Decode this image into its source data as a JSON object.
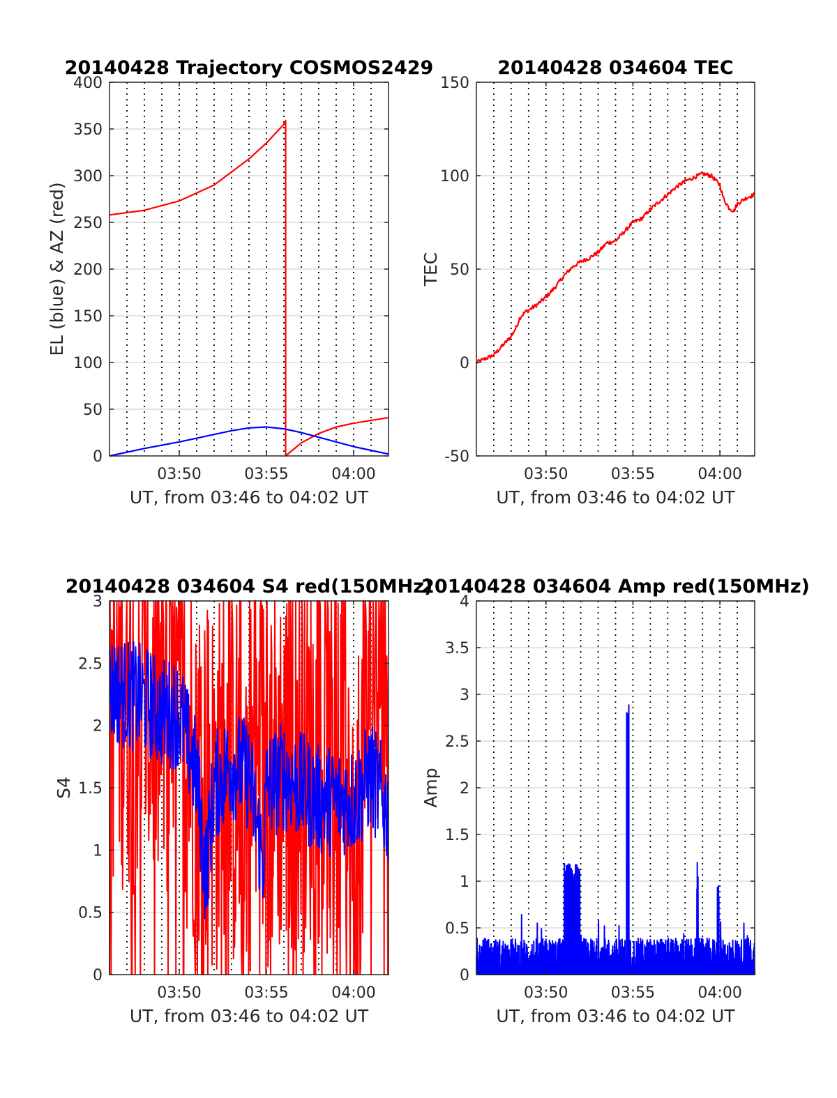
{
  "colors": {
    "red": "#ff0000",
    "blue": "#0000ff",
    "axis": "#262626",
    "grid": "#dcdcdc"
  },
  "chart_data": [
    {
      "type": "line",
      "title": "20140428 Trajectory COSMOS2429",
      "xlabel": "UT, from 03:46 to 04:02 UT",
      "ylabel": "EL (blue) & AZ (red)",
      "x_unit": "minutes after 03:46 UT",
      "xlim": [
        0,
        16
      ],
      "ylim": [
        0,
        400
      ],
      "yticks": [
        0,
        50,
        100,
        150,
        200,
        250,
        300,
        350,
        400
      ],
      "ytick_labels": [
        "0",
        "50",
        "100",
        "150",
        "200",
        "250",
        "300",
        "350",
        "400"
      ],
      "xticks": [
        4,
        9,
        14
      ],
      "xtick_labels": [
        "03:50",
        "03:55",
        "04:00"
      ],
      "series": [
        {
          "color": "red",
          "x": [
            0,
            2,
            4,
            6,
            8,
            9,
            10,
            10.1,
            10.1,
            11,
            12,
            13,
            14,
            15,
            16
          ],
          "y": [
            258,
            263,
            273,
            290,
            318,
            335,
            355,
            359,
            0,
            14,
            24,
            31,
            35,
            38,
            41
          ]
        },
        {
          "color": "blue",
          "x": [
            0,
            2,
            4,
            6,
            7,
            8,
            9,
            10,
            11,
            12,
            13,
            14,
            15,
            16
          ],
          "y": [
            0,
            8,
            15,
            23,
            27,
            30,
            31,
            29,
            25,
            20,
            15,
            10,
            6,
            2
          ]
        }
      ]
    },
    {
      "type": "line",
      "title": "20140428 034604 TEC",
      "xlabel": "UT, from 03:46 to 04:02 UT",
      "ylabel": "TEC",
      "x_unit": "minutes after 03:46 UT",
      "xlim": [
        0,
        16
      ],
      "ylim": [
        -50,
        150
      ],
      "yticks": [
        -50,
        0,
        50,
        100,
        150
      ],
      "ytick_labels": [
        "-50",
        "0",
        "50",
        "100",
        "150"
      ],
      "xticks": [
        4,
        9,
        14
      ],
      "xtick_labels": [
        "03:50",
        "03:55",
        "04:00"
      ],
      "series": [
        {
          "color": "red",
          "x": [
            0,
            0.5,
            1,
            1.5,
            2,
            2.3,
            2.5,
            2.8,
            3,
            3.5,
            4,
            4.5,
            5,
            5.5,
            6,
            6.5,
            7,
            7.5,
            8,
            8.5,
            9,
            9.5,
            10,
            10.5,
            11,
            11.5,
            12,
            12.5,
            13,
            13.5,
            14,
            14.2,
            14.5,
            14.8,
            15,
            15.5,
            16
          ],
          "y": [
            0,
            2,
            4,
            9,
            14,
            19,
            24,
            27,
            28,
            31,
            35,
            40,
            46,
            51,
            54,
            56,
            59,
            64,
            65,
            70,
            75,
            77,
            82,
            86,
            90,
            94,
            97,
            99,
            101,
            100,
            95,
            88,
            83,
            81,
            85,
            88,
            90
          ]
        }
      ]
    },
    {
      "type": "line",
      "title": "20140428 034604 S4 red(150MHz)",
      "xlabel": "UT, from 03:46 to 04:02 UT",
      "ylabel": "S4",
      "x_unit": "minutes after 03:46 UT",
      "xlim": [
        0,
        16
      ],
      "ylim": [
        0,
        3
      ],
      "yticks": [
        0,
        0.5,
        1,
        1.5,
        2,
        2.5,
        3
      ],
      "ytick_labels": [
        "0",
        "0.5",
        "1",
        "1.5",
        "2",
        "2.5",
        "3"
      ],
      "xticks": [
        4,
        9,
        14
      ],
      "xtick_labels": [
        "03:50",
        "03:55",
        "04:00"
      ],
      "series": [
        {
          "color": "red",
          "noise": "dense",
          "x": [
            0,
            2,
            4,
            6,
            8,
            10,
            12,
            13.5,
            14,
            15,
            16
          ],
          "y": [
            2.3,
            2.2,
            2.0,
            1.5,
            1.6,
            1.7,
            1.8,
            1.4,
            0.6,
            2.5,
            2.8
          ],
          "amp": 1.6
        },
        {
          "color": "blue",
          "noise": "dense",
          "x": [
            0,
            2,
            3,
            4,
            5,
            5.5,
            6,
            7,
            8,
            8.8,
            9,
            10,
            11,
            12,
            13,
            14,
            15,
            16
          ],
          "y": [
            2.3,
            2.2,
            2.1,
            2.1,
            1.6,
            0.8,
            1.5,
            1.7,
            1.6,
            0.9,
            1.5,
            1.6,
            1.5,
            1.4,
            1.4,
            1.4,
            1.6,
            1.3
          ],
          "amp": 0.45
        }
      ]
    },
    {
      "type": "line",
      "title": "20140428 034604 Amp red(150MHz)",
      "xlabel": "UT, from 03:46 to 04:02 UT",
      "ylabel": "Amp",
      "x_unit": "minutes after 03:46 UT",
      "xlim": [
        0,
        16
      ],
      "ylim": [
        0,
        4
      ],
      "yticks": [
        0,
        0.5,
        1,
        1.5,
        2,
        2.5,
        3,
        3.5,
        4
      ],
      "ytick_labels": [
        "0",
        "0.5",
        "1",
        "1.5",
        "2",
        "2.5",
        "3",
        "3.5",
        "4"
      ],
      "xticks": [
        4,
        9,
        14
      ],
      "xtick_labels": [
        "03:50",
        "03:55",
        "04:00"
      ],
      "series": [
        {
          "color": "blue",
          "noise": "spiky",
          "baseline": 0.2,
          "amp": 0.38,
          "peaks": [
            {
              "x": 5.5,
              "width": 0.9,
              "height": 1.2
            },
            {
              "x": 8.7,
              "width": 0.15,
              "height": 3.05
            },
            {
              "x": 12.7,
              "width": 0.08,
              "height": 1.2
            },
            {
              "x": 13.9,
              "width": 0.1,
              "height": 1.0
            }
          ]
        }
      ]
    }
  ]
}
